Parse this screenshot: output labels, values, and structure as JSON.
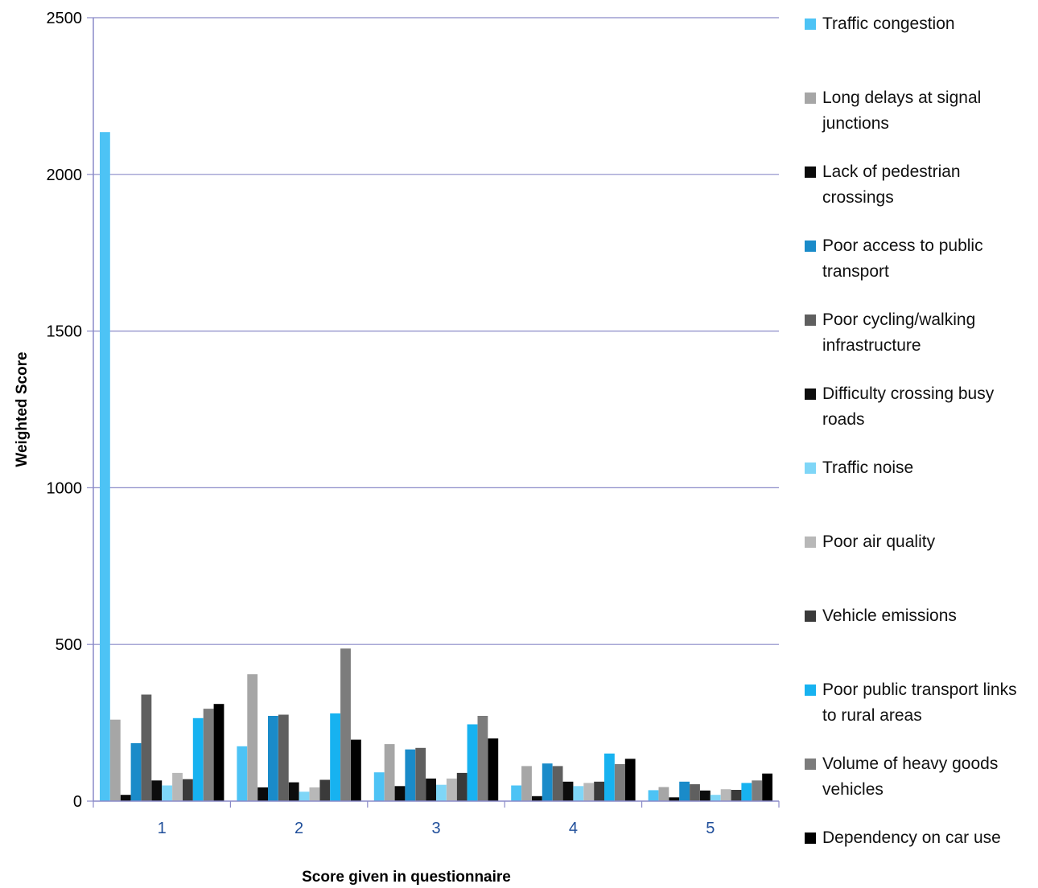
{
  "chart_data": {
    "type": "bar",
    "xlabel": "Score given in questionnaire",
    "ylabel": "Weighted Score",
    "ylim": [
      0,
      2500
    ],
    "yticks": [
      0,
      500,
      1000,
      1500,
      2000,
      2500
    ],
    "grid": true,
    "legend_position": "right",
    "categories": [
      "1",
      "2",
      "3",
      "4",
      "5"
    ],
    "series": [
      {
        "name": "Traffic congestion",
        "color": "#4dc3f5",
        "values": [
          2135,
          175,
          92,
          50,
          35
        ]
      },
      {
        "name": "Long delays at signal junctions",
        "color": "#a6a6a6",
        "values": [
          260,
          405,
          182,
          112,
          45
        ]
      },
      {
        "name": "Lack of pedestrian crossings",
        "color": "#0a0a0a",
        "values": [
          20,
          44,
          48,
          16,
          12
        ]
      },
      {
        "name": "Poor access to public transport",
        "color": "#1a8bc9",
        "values": [
          185,
          272,
          165,
          120,
          62
        ]
      },
      {
        "name": "Poor cycling/walking infrastructure",
        "color": "#5f5f5f",
        "values": [
          340,
          276,
          170,
          112,
          54
        ]
      },
      {
        "name": "Difficulty crossing busy roads",
        "color": "#0d0d0d",
        "values": [
          66,
          60,
          72,
          62,
          34
        ]
      },
      {
        "name": "Traffic noise",
        "color": "#7fd6f7",
        "values": [
          50,
          30,
          52,
          48,
          20
        ]
      },
      {
        "name": "Poor air quality",
        "color": "#b8b8b8",
        "values": [
          90,
          44,
          72,
          58,
          38
        ]
      },
      {
        "name": "Vehicle emissions",
        "color": "#3a3a3a",
        "values": [
          70,
          68,
          90,
          62,
          36
        ]
      },
      {
        "name": "Poor public transport links to rural areas",
        "color": "#17b2f0",
        "values": [
          265,
          280,
          245,
          152,
          58
        ]
      },
      {
        "name": "Volume of heavy goods vehicles",
        "color": "#7c7c7c",
        "values": [
          295,
          487,
          272,
          118,
          66
        ]
      },
      {
        "name": "Dependency on car use",
        "color": "#000000",
        "values": [
          310,
          196,
          200,
          135,
          88
        ]
      }
    ]
  }
}
